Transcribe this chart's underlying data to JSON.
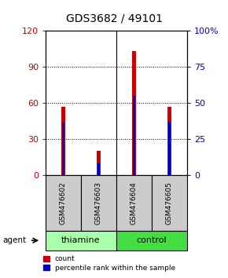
{
  "title": "GDS3682 / 49101",
  "samples": [
    "GSM476602",
    "GSM476603",
    "GSM476604",
    "GSM476605"
  ],
  "red_counts": [
    57,
    20,
    103,
    57
  ],
  "blue_percentiles": [
    37,
    8,
    55,
    37
  ],
  "left_yticks": [
    0,
    30,
    60,
    90,
    120
  ],
  "right_yticks": [
    0,
    25,
    50,
    75,
    100
  ],
  "left_ylim": [
    0,
    120
  ],
  "right_ylim": [
    0,
    100
  ],
  "left_tick_color": "#CC0000",
  "right_tick_color": "#0000CC",
  "red_bar_width": 0.12,
  "blue_bar_width": 0.06,
  "red_color": "#CC0000",
  "blue_color": "#0000CC",
  "label_area_color": "#CCCCCC",
  "thiamine_color": "#AAFFAA",
  "control_color": "#44DD44",
  "group_spans": [
    [
      0,
      2,
      "thiamine"
    ],
    [
      2,
      4,
      "control"
    ]
  ]
}
